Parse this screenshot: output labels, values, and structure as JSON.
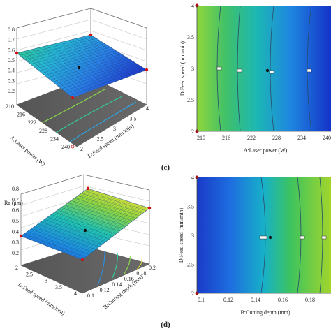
{
  "panel_labels": [
    "(c)",
    "(d)"
  ],
  "chart_data": [
    {
      "type": "surface",
      "panel": "top-left",
      "z_ticks": [
        "0.8",
        "0.7",
        "0.6",
        "0.5",
        "0.4",
        "0.3",
        "0.2"
      ],
      "x_label": "A:Laser power (W)",
      "x_ticks": [
        "210",
        "216",
        "222",
        "228",
        "234",
        "240"
      ],
      "y_label": "D:Feed speed (mm/min)",
      "y_ticks": [
        "2",
        "2.5",
        "3",
        "3.5",
        "4"
      ],
      "x_range": [
        210,
        240
      ],
      "y_range": [
        2,
        4
      ],
      "z_range": [
        0.2,
        0.8
      ],
      "corner_points": [
        {
          "x": 210,
          "y": 2,
          "z": 0.49
        },
        {
          "x": 210,
          "y": 4,
          "z": 0.56
        },
        {
          "x": 240,
          "y": 2,
          "z": 0.21
        },
        {
          "x": 240,
          "y": 4,
          "z": 0.26
        }
      ],
      "center_point": {
        "x": 225,
        "y": 3,
        "z": 0.38
      }
    },
    {
      "type": "contour",
      "panel": "top-right",
      "x_label": "A:Laser power (W)",
      "x_ticks": [
        "210",
        "216",
        "222",
        "228",
        "234",
        "240"
      ],
      "y_label": "D:Feed speed (mm/min)",
      "y_ticks": [
        "2",
        "2.5",
        "3",
        "3.5",
        "4"
      ],
      "x_range": [
        210,
        240
      ],
      "y_range": [
        2,
        4
      ],
      "center_point": {
        "x": 225,
        "y": 3
      }
    },
    {
      "type": "surface",
      "panel": "bottom-left",
      "z_label": "Ra (μm)",
      "z_ticks": [
        "0.8",
        "0.7",
        "0.6",
        "0.5",
        "0.4",
        "0.3",
        "0.2"
      ],
      "x_label": "D:Feed speed (mm/mm)",
      "x_ticks": [
        "2",
        "2.5",
        "3",
        "3.5",
        "4"
      ],
      "y_label": "B:Cutting depth (mm)",
      "y_ticks": [
        "0.1",
        "0.12",
        "0.14",
        "0.16",
        "0.18",
        "0.2"
      ],
      "x_range": [
        2,
        4
      ],
      "y_range": [
        0.1,
        0.2
      ],
      "z_range": [
        0.2,
        0.8
      ],
      "corner_points": [
        {
          "x": 4,
          "y": 0.1,
          "z": 0.31
        },
        {
          "x": 4,
          "y": 0.2,
          "z": 0.76
        },
        {
          "x": 2,
          "y": 0.1,
          "z": 0.22
        },
        {
          "x": 2,
          "y": 0.2,
          "z": 0.64
        }
      ],
      "center_point": {
        "x": 3,
        "y": 0.15,
        "z": 0.4
      }
    },
    {
      "type": "contour",
      "panel": "bottom-right",
      "x_label": "B:Cutting depth (mm)",
      "x_ticks": [
        "0.1",
        "0.12",
        "0.14",
        "0.16",
        "0.18"
      ],
      "y_label": "D:Feed speed (mm/min)",
      "y_ticks": [
        "2",
        "2.5",
        "3",
        "3.5",
        "4"
      ],
      "x_range": [
        0.1,
        0.2
      ],
      "y_range": [
        2,
        4
      ],
      "center_point": {
        "x": 0.15,
        "y": 3
      }
    }
  ]
}
